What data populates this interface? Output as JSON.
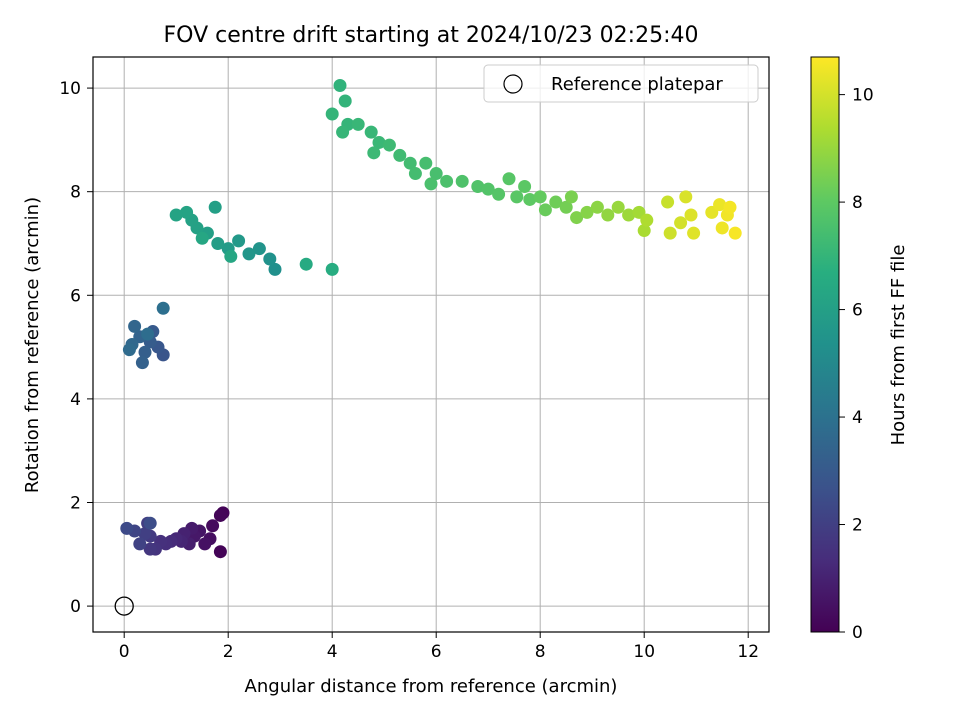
{
  "chart_data": {
    "type": "scatter",
    "title": "FOV centre drift starting at 2024/10/23 02:25:40",
    "xlabel": "Angular distance from reference (arcmin)",
    "ylabel": "Rotation from reference (arcmin)",
    "xlim": [
      -0.6,
      12.4
    ],
    "ylim": [
      -0.5,
      10.6
    ],
    "xticks": [
      0,
      2,
      4,
      6,
      8,
      10,
      12
    ],
    "yticks": [
      0,
      2,
      4,
      6,
      8,
      10
    ],
    "grid": true,
    "legend": {
      "position": "top-right",
      "entries": [
        {
          "label": "Reference platepar",
          "marker": "hollow-circle"
        }
      ]
    },
    "reference_point": {
      "x": 0,
      "y": 0
    },
    "colorbar": {
      "label": "Hours from first FF file",
      "colormap": "viridis",
      "range": [
        0,
        10.7
      ],
      "ticks": [
        0,
        2,
        4,
        6,
        8,
        10
      ]
    },
    "series": [
      {
        "points": [
          {
            "x": 1.85,
            "y": 1.05,
            "c": 0.1
          },
          {
            "x": 1.9,
            "y": 1.8,
            "c": 0.1
          },
          {
            "x": 1.85,
            "y": 1.75,
            "c": 0.15
          },
          {
            "x": 1.7,
            "y": 1.55,
            "c": 0.3
          },
          {
            "x": 1.65,
            "y": 1.3,
            "c": 0.4
          },
          {
            "x": 1.55,
            "y": 1.2,
            "c": 0.5
          },
          {
            "x": 1.45,
            "y": 1.45,
            "c": 0.6
          },
          {
            "x": 1.35,
            "y": 1.35,
            "c": 0.7
          },
          {
            "x": 1.3,
            "y": 1.5,
            "c": 0.8
          },
          {
            "x": 1.25,
            "y": 1.2,
            "c": 0.9
          },
          {
            "x": 1.15,
            "y": 1.4,
            "c": 1.0
          },
          {
            "x": 1.1,
            "y": 1.25,
            "c": 1.1
          },
          {
            "x": 1.0,
            "y": 1.3,
            "c": 1.2
          },
          {
            "x": 0.9,
            "y": 1.25,
            "c": 1.3
          },
          {
            "x": 0.8,
            "y": 1.2,
            "c": 1.4
          },
          {
            "x": 0.7,
            "y": 1.25,
            "c": 1.5
          },
          {
            "x": 0.6,
            "y": 1.1,
            "c": 1.6
          },
          {
            "x": 0.5,
            "y": 1.1,
            "c": 1.7
          },
          {
            "x": 0.5,
            "y": 1.35,
            "c": 1.8
          },
          {
            "x": 0.45,
            "y": 1.6,
            "c": 1.9
          },
          {
            "x": 0.4,
            "y": 1.4,
            "c": 2.0
          },
          {
            "x": 0.3,
            "y": 1.2,
            "c": 2.1
          },
          {
            "x": 0.2,
            "y": 1.45,
            "c": 2.2
          },
          {
            "x": 0.05,
            "y": 1.5,
            "c": 2.4
          },
          {
            "x": 0.5,
            "y": 1.6,
            "c": 2.5
          },
          {
            "x": 0.75,
            "y": 4.85,
            "c": 2.8
          },
          {
            "x": 0.65,
            "y": 5.0,
            "c": 2.9
          },
          {
            "x": 0.55,
            "y": 5.3,
            "c": 3.0
          },
          {
            "x": 0.5,
            "y": 5.1,
            "c": 3.1
          },
          {
            "x": 0.4,
            "y": 4.9,
            "c": 3.2
          },
          {
            "x": 0.35,
            "y": 4.7,
            "c": 3.3
          },
          {
            "x": 0.3,
            "y": 5.2,
            "c": 3.4
          },
          {
            "x": 0.2,
            "y": 5.4,
            "c": 3.5
          },
          {
            "x": 0.15,
            "y": 5.05,
            "c": 3.6
          },
          {
            "x": 0.1,
            "y": 4.95,
            "c": 3.7
          },
          {
            "x": 0.45,
            "y": 5.25,
            "c": 3.8
          },
          {
            "x": 0.75,
            "y": 5.75,
            "c": 3.9
          },
          {
            "x": 2.9,
            "y": 6.5,
            "c": 5.3
          },
          {
            "x": 2.8,
            "y": 6.7,
            "c": 5.4
          },
          {
            "x": 2.6,
            "y": 6.9,
            "c": 5.5
          },
          {
            "x": 2.4,
            "y": 6.8,
            "c": 5.6
          },
          {
            "x": 2.2,
            "y": 7.05,
            "c": 5.7
          },
          {
            "x": 2.0,
            "y": 6.9,
            "c": 5.8
          },
          {
            "x": 1.8,
            "y": 7.0,
            "c": 5.9
          },
          {
            "x": 1.75,
            "y": 7.7,
            "c": 6.0
          },
          {
            "x": 1.6,
            "y": 7.2,
            "c": 6.0
          },
          {
            "x": 1.4,
            "y": 7.3,
            "c": 6.1
          },
          {
            "x": 1.3,
            "y": 7.45,
            "c": 6.1
          },
          {
            "x": 1.2,
            "y": 7.6,
            "c": 6.2
          },
          {
            "x": 1.0,
            "y": 7.55,
            "c": 6.2
          },
          {
            "x": 1.5,
            "y": 7.1,
            "c": 6.3
          },
          {
            "x": 2.05,
            "y": 6.75,
            "c": 6.3
          },
          {
            "x": 3.5,
            "y": 6.6,
            "c": 6.5
          },
          {
            "x": 4.0,
            "y": 6.5,
            "c": 6.6
          },
          {
            "x": 4.15,
            "y": 10.05,
            "c": 6.9
          },
          {
            "x": 4.25,
            "y": 9.75,
            "c": 6.95
          },
          {
            "x": 4.0,
            "y": 9.5,
            "c": 7.0
          },
          {
            "x": 4.3,
            "y": 9.3,
            "c": 7.0
          },
          {
            "x": 4.2,
            "y": 9.15,
            "c": 7.05
          },
          {
            "x": 4.5,
            "y": 9.3,
            "c": 7.1
          },
          {
            "x": 4.75,
            "y": 9.15,
            "c": 7.1
          },
          {
            "x": 4.9,
            "y": 8.95,
            "c": 7.15
          },
          {
            "x": 4.8,
            "y": 8.75,
            "c": 7.2
          },
          {
            "x": 5.1,
            "y": 8.9,
            "c": 7.25
          },
          {
            "x": 5.3,
            "y": 8.7,
            "c": 7.3
          },
          {
            "x": 5.5,
            "y": 8.55,
            "c": 7.35
          },
          {
            "x": 5.6,
            "y": 8.35,
            "c": 7.4
          },
          {
            "x": 5.8,
            "y": 8.55,
            "c": 7.45
          },
          {
            "x": 6.0,
            "y": 8.35,
            "c": 7.5
          },
          {
            "x": 5.9,
            "y": 8.15,
            "c": 7.55
          },
          {
            "x": 6.2,
            "y": 8.2,
            "c": 7.6
          },
          {
            "x": 6.5,
            "y": 8.2,
            "c": 7.65
          },
          {
            "x": 6.8,
            "y": 8.1,
            "c": 7.7
          },
          {
            "x": 7.0,
            "y": 8.05,
            "c": 7.75
          },
          {
            "x": 7.2,
            "y": 7.95,
            "c": 7.8
          },
          {
            "x": 7.4,
            "y": 8.25,
            "c": 7.85
          },
          {
            "x": 7.55,
            "y": 7.9,
            "c": 7.9
          },
          {
            "x": 7.7,
            "y": 8.1,
            "c": 7.95
          },
          {
            "x": 7.8,
            "y": 7.85,
            "c": 8.0
          },
          {
            "x": 8.0,
            "y": 7.9,
            "c": 8.1
          },
          {
            "x": 8.1,
            "y": 7.65,
            "c": 8.2
          },
          {
            "x": 8.3,
            "y": 7.8,
            "c": 8.3
          },
          {
            "x": 8.5,
            "y": 7.7,
            "c": 8.4
          },
          {
            "x": 8.6,
            "y": 7.9,
            "c": 8.5
          },
          {
            "x": 8.7,
            "y": 7.5,
            "c": 8.6
          },
          {
            "x": 8.9,
            "y": 7.6,
            "c": 8.7
          },
          {
            "x": 9.1,
            "y": 7.7,
            "c": 8.8
          },
          {
            "x": 9.3,
            "y": 7.55,
            "c": 8.9
          },
          {
            "x": 9.5,
            "y": 7.7,
            "c": 9.0
          },
          {
            "x": 9.7,
            "y": 7.55,
            "c": 9.1
          },
          {
            "x": 9.9,
            "y": 7.6,
            "c": 9.2
          },
          {
            "x": 10.0,
            "y": 7.25,
            "c": 9.3
          },
          {
            "x": 10.05,
            "y": 7.45,
            "c": 9.4
          },
          {
            "x": 10.45,
            "y": 7.8,
            "c": 9.8
          },
          {
            "x": 10.5,
            "y": 7.2,
            "c": 9.9
          },
          {
            "x": 10.7,
            "y": 7.4,
            "c": 10.0
          },
          {
            "x": 10.8,
            "y": 7.9,
            "c": 10.1
          },
          {
            "x": 10.9,
            "y": 7.55,
            "c": 10.15
          },
          {
            "x": 10.95,
            "y": 7.2,
            "c": 10.2
          },
          {
            "x": 11.3,
            "y": 7.6,
            "c": 10.3
          },
          {
            "x": 11.45,
            "y": 7.75,
            "c": 10.4
          },
          {
            "x": 11.5,
            "y": 7.3,
            "c": 10.45
          },
          {
            "x": 11.6,
            "y": 7.55,
            "c": 10.5
          },
          {
            "x": 11.65,
            "y": 7.7,
            "c": 10.55
          },
          {
            "x": 11.75,
            "y": 7.2,
            "c": 10.6
          }
        ]
      }
    ]
  }
}
